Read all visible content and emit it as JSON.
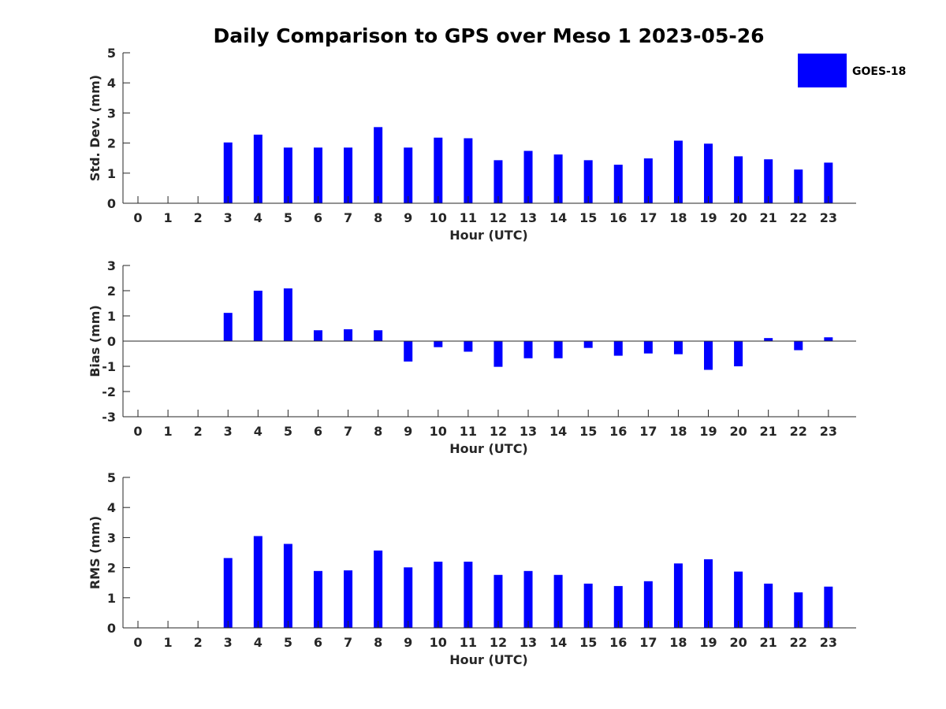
{
  "title": "Daily Comparison to GPS over Meso 1 2023-05-26",
  "colors": {
    "bar": "#0000ff",
    "axis": "#262626"
  },
  "legend": {
    "label": "GOES-18",
    "placement": "top-right"
  },
  "chart_data": [
    {
      "type": "bar",
      "xlabel": "Hour (UTC)",
      "ylabel": "Std. Dev. (mm)",
      "ylim": [
        0,
        5
      ],
      "yticks": [
        0,
        1,
        2,
        3,
        4,
        5
      ],
      "categories": [
        "0",
        "1",
        "2",
        "3",
        "4",
        "5",
        "6",
        "7",
        "8",
        "9",
        "10",
        "11",
        "12",
        "13",
        "14",
        "15",
        "16",
        "17",
        "18",
        "19",
        "20",
        "21",
        "22",
        "23"
      ],
      "series": [
        {
          "name": "GOES-18",
          "values": [
            null,
            null,
            null,
            2.02,
            2.28,
            1.85,
            1.85,
            1.85,
            2.53,
            1.85,
            2.18,
            2.16,
            1.43,
            1.74,
            1.62,
            1.43,
            1.28,
            1.49,
            2.08,
            1.98,
            1.56,
            1.46,
            1.12,
            1.35
          ]
        }
      ]
    },
    {
      "type": "bar",
      "xlabel": "Hour (UTC)",
      "ylabel": "Bias (mm)",
      "ylim": [
        -3,
        3
      ],
      "yticks": [
        -3,
        -2,
        -1,
        0,
        1,
        2,
        3
      ],
      "categories": [
        "0",
        "1",
        "2",
        "3",
        "4",
        "5",
        "6",
        "7",
        "8",
        "9",
        "10",
        "11",
        "12",
        "13",
        "14",
        "15",
        "16",
        "17",
        "18",
        "19",
        "20",
        "21",
        "22",
        "23"
      ],
      "series": [
        {
          "name": "GOES-18",
          "values": [
            null,
            null,
            null,
            1.12,
            2.0,
            2.09,
            0.43,
            0.47,
            0.43,
            -0.81,
            -0.24,
            -0.42,
            -1.02,
            -0.68,
            -0.68,
            -0.27,
            -0.58,
            -0.49,
            -0.52,
            -1.14,
            -1.0,
            0.12,
            -0.36,
            0.15
          ]
        }
      ]
    },
    {
      "type": "bar",
      "xlabel": "Hour (UTC)",
      "ylabel": "RMS (mm)",
      "ylim": [
        0,
        5
      ],
      "yticks": [
        0,
        1,
        2,
        3,
        4,
        5
      ],
      "categories": [
        "0",
        "1",
        "2",
        "3",
        "4",
        "5",
        "6",
        "7",
        "8",
        "9",
        "10",
        "11",
        "12",
        "13",
        "14",
        "15",
        "16",
        "17",
        "18",
        "19",
        "20",
        "21",
        "22",
        "23"
      ],
      "series": [
        {
          "name": "GOES-18",
          "values": [
            null,
            null,
            null,
            2.32,
            3.05,
            2.79,
            1.89,
            1.91,
            2.57,
            2.01,
            2.2,
            2.2,
            1.76,
            1.89,
            1.76,
            1.47,
            1.39,
            1.55,
            2.14,
            2.28,
            1.87,
            1.47,
            1.18,
            1.37
          ]
        }
      ]
    }
  ]
}
